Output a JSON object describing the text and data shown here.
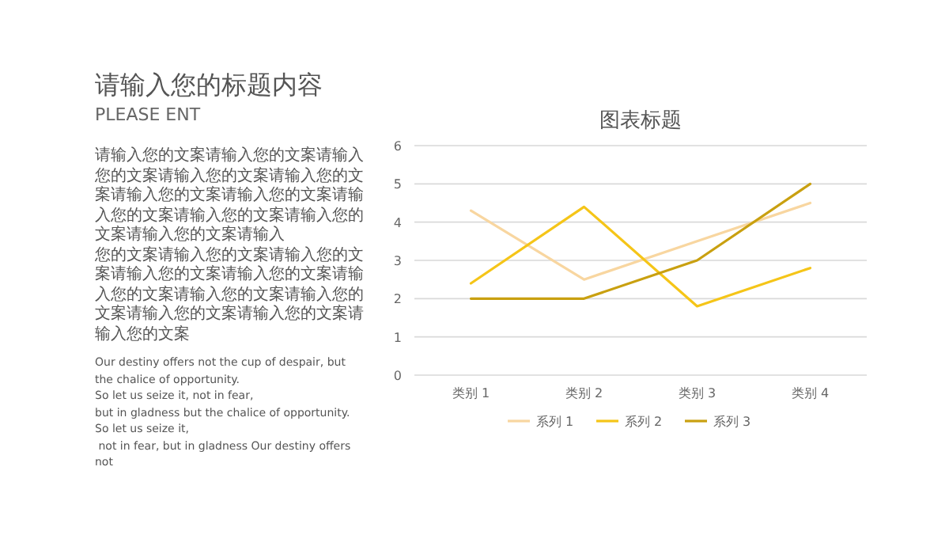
{
  "chart_data": {
    "type": "line",
    "title": "图表标题",
    "categories": [
      "类别 1",
      "类别 2",
      "类别 3",
      "类别 4"
    ],
    "series": [
      {
        "name": "系列 1",
        "color": "#f8d6a0",
        "values": [
          4.3,
          2.5,
          3.5,
          4.5
        ]
      },
      {
        "name": "系列 2",
        "color": "#f5c518",
        "values": [
          2.4,
          4.4,
          1.8,
          2.8
        ]
      },
      {
        "name": "系列 3",
        "color": "#c9a010",
        "values": [
          2,
          2,
          3,
          5
        ]
      }
    ],
    "ylim": [
      0,
      6
    ],
    "yticks": [
      0,
      1,
      2,
      3,
      4,
      5,
      6
    ],
    "grid": "y",
    "legend": "bottom",
    "annotations": [
      "请输入您的标题内容",
      "PLEASE ENT",
      "请输入您的文案请输入您的文案请输入您的文案请输入您的文案请输入您的文案请输入您的文案请输入您的文案请输入您的文案请输入您的文案请输入您的文案请输入您的文案请输入",
      "您的文案请输入您的文案请输入您的文案请输入您的文案请输入您的文案请输入您的文案请输入您的文案请输入您的文案请输入您的文案请输入您的文案请输入您的文案",
      "Our destiny offers not the cup of despair, but the chalice of opportunity.",
      "So let us seize it, not in fear,",
      "but in gladness but the chalice of opportunity. So let us seize it,",
      " not in fear, but in gladness Our destiny offers not"
    ]
  }
}
